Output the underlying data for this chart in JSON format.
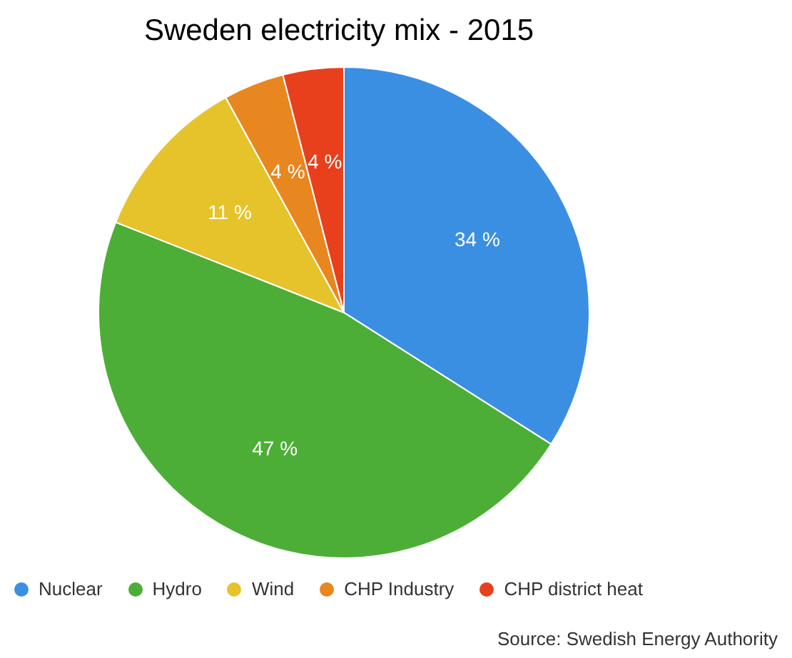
{
  "chart_data": {
    "type": "pie",
    "title": "Sweden electricity mix - 2015",
    "categories": [
      "Nuclear",
      "Hydro",
      "Wind",
      "CHP Industry",
      "CHP district heat"
    ],
    "values": [
      34,
      47,
      11,
      4,
      4
    ],
    "value_labels": [
      "34 %",
      "47 %",
      "11 %",
      "4 %",
      "4 %"
    ],
    "colors": [
      "#3b8fe3",
      "#4cae36",
      "#e6c32a",
      "#e8861f",
      "#e8401c"
    ],
    "legend": "bottom",
    "annotations": [
      "Source: Swedish Energy Authority"
    ]
  }
}
